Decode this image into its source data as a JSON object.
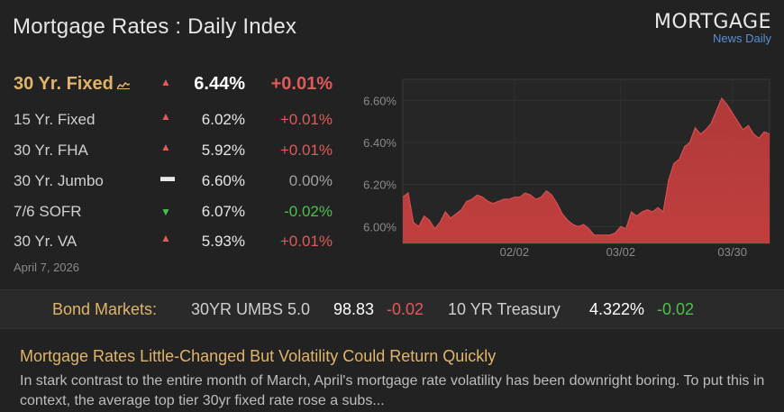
{
  "header": {
    "title": "Mortgage Rates : Daily Index",
    "logo_main": "MORTGAGE",
    "logo_sub": "News Daily"
  },
  "rates": [
    {
      "name": "30 Yr. Fixed",
      "direction": "up",
      "rate": "6.44%",
      "change": "+0.01%"
    },
    {
      "name": "15 Yr. Fixed",
      "direction": "up",
      "rate": "6.02%",
      "change": "+0.01%"
    },
    {
      "name": "30 Yr. FHA",
      "direction": "up",
      "rate": "5.92%",
      "change": "+0.01%"
    },
    {
      "name": "30 Yr. Jumbo",
      "direction": "flat",
      "rate": "6.60%",
      "change": "0.00%"
    },
    {
      "name": "7/6 SOFR",
      "direction": "down",
      "rate": "6.07%",
      "change": "-0.02%"
    },
    {
      "name": "30 Yr. VA",
      "direction": "up",
      "rate": "5.93%",
      "change": "+0.01%"
    }
  ],
  "date": "April 7, 2026",
  "chart_data": {
    "type": "area",
    "y_ticks": [
      "6.60%",
      "6.40%",
      "6.20%",
      "6.00%"
    ],
    "x_ticks": [
      "02/02",
      "03/02",
      "03/30"
    ],
    "ylim": [
      5.92,
      6.7
    ],
    "color": "#b83a3a",
    "values": [
      6.14,
      6.16,
      6.02,
      6.0,
      6.05,
      6.03,
      5.99,
      6.02,
      6.07,
      6.04,
      6.06,
      6.08,
      6.12,
      6.13,
      6.15,
      6.14,
      6.12,
      6.11,
      6.12,
      6.13,
      6.13,
      6.14,
      6.14,
      6.16,
      6.15,
      6.13,
      6.14,
      6.17,
      6.15,
      6.11,
      6.06,
      6.03,
      6.01,
      6.0,
      6.01,
      5.99,
      5.96,
      5.96,
      5.96,
      5.96,
      5.97,
      6.0,
      5.99,
      6.07,
      6.05,
      6.07,
      6.08,
      6.07,
      6.09,
      6.07,
      6.22,
      6.3,
      6.32,
      6.38,
      6.4,
      6.47,
      6.44,
      6.46,
      6.49,
      6.55,
      6.61,
      6.58,
      6.54,
      6.5,
      6.46,
      6.48,
      6.44,
      6.42,
      6.45,
      6.44
    ]
  },
  "bond": {
    "label": "Bond Markets:",
    "umbs_name": "30YR UMBS 5.0",
    "umbs_value": "98.83",
    "umbs_change": "-0.02",
    "tsy_name": "10 YR Treasury",
    "tsy_value": "4.322%",
    "tsy_change": "-0.02"
  },
  "news": {
    "title": "Mortgage Rates Little-Changed But Volatility Could Return Quickly",
    "body": "In stark contrast to the entire month of March, April's mortgage rate volatility has been downright boring. To put this in context, the average top tier 30yr fixed rate rose a subs..."
  }
}
